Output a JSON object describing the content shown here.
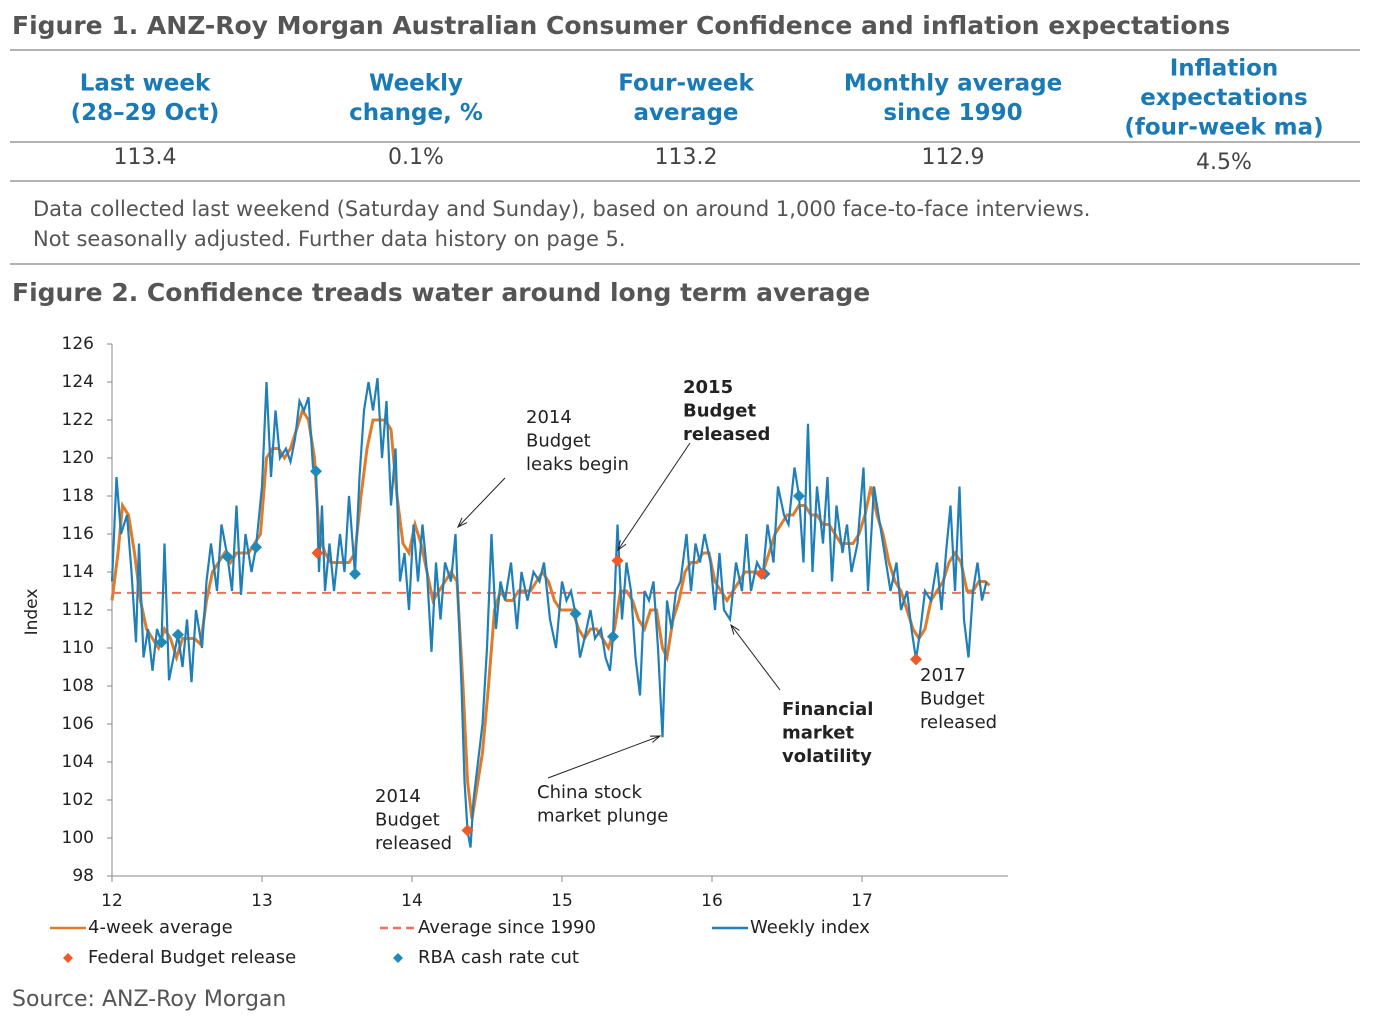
{
  "figure1": {
    "title": "Figure 1. ANZ-Roy Morgan Australian Consumer Confidence and inflation expectations",
    "headers": [
      [
        "Last week",
        "(28–29 Oct)"
      ],
      [
        "Weekly",
        "change, %"
      ],
      [
        "Four-week",
        "average"
      ],
      [
        "Monthly average",
        "since 1990"
      ],
      [
        "Inflation",
        "expectations",
        "(four-week ma)"
      ]
    ],
    "values": [
      "113.4",
      "0.1%",
      "113.2",
      "112.9",
      "4.5%"
    ],
    "note": [
      "Data collected last weekend (Saturday and Sunday), based on around 1,000 face-to-face interviews.",
      "Not seasonally adjusted. Further data history on page 5."
    ]
  },
  "chart_data": {
    "type": "line",
    "title": "Figure 2. Confidence treads water around long term average",
    "y_label": "Index",
    "xlim": [
      12,
      18
    ],
    "xticks": [
      12,
      13,
      14,
      15,
      16,
      17
    ],
    "ylim": [
      98,
      126
    ],
    "yticks": [
      98,
      100,
      102,
      104,
      106,
      108,
      110,
      112,
      114,
      116,
      118,
      120,
      122,
      124,
      126
    ],
    "series": [
      {
        "name": "4-week average",
        "color": "#e07b2a",
        "style": "line",
        "x": [
          12.0,
          12.04,
          12.07,
          12.11,
          12.15,
          12.19,
          12.23,
          12.27,
          12.31,
          12.35,
          12.39,
          12.43,
          12.47,
          12.51,
          12.55,
          12.59,
          12.63,
          12.67,
          12.71,
          12.75,
          12.79,
          12.83,
          12.87,
          12.91,
          12.95,
          12.99,
          13.03,
          13.07,
          13.11,
          13.15,
          13.19,
          13.23,
          13.27,
          13.31,
          13.35,
          13.38,
          13.42,
          13.46,
          13.5,
          13.54,
          13.58,
          13.62,
          13.66,
          13.7,
          13.74,
          13.78,
          13.82,
          13.86,
          13.9,
          13.94,
          13.98,
          14.02,
          14.06,
          14.1,
          14.14,
          14.18,
          14.22,
          14.26,
          14.3,
          14.34,
          14.37,
          14.4,
          14.43,
          14.47,
          14.51,
          14.55,
          14.59,
          14.63,
          14.67,
          14.71,
          14.75,
          14.79,
          14.83,
          14.87,
          14.91,
          14.95,
          14.99,
          15.03,
          15.07,
          15.11,
          15.15,
          15.19,
          15.23,
          15.27,
          15.31,
          15.35,
          15.39,
          15.43,
          15.47,
          15.51,
          15.55,
          15.59,
          15.63,
          15.67,
          15.7,
          15.74,
          15.78,
          15.82,
          15.86,
          15.9,
          15.94,
          15.98,
          16.02,
          16.06,
          16.1,
          16.14,
          16.18,
          16.22,
          16.26,
          16.3,
          16.34,
          16.38,
          16.42,
          16.46,
          16.5,
          16.54,
          16.58,
          16.62,
          16.66,
          16.7,
          16.74,
          16.78,
          16.82,
          16.86,
          16.9,
          16.94,
          16.98,
          17.02,
          17.06,
          17.1,
          17.14,
          17.18,
          17.22,
          17.26,
          17.3,
          17.34,
          17.38,
          17.42,
          17.46,
          17.5,
          17.54,
          17.58,
          17.62,
          17.66,
          17.7,
          17.74,
          17.78,
          17.82,
          17.85
        ],
        "values": [
          112.5,
          115,
          117.5,
          117,
          115,
          112.5,
          111,
          110.5,
          110,
          111,
          110.5,
          109.5,
          110.5,
          110.5,
          110.5,
          110.2,
          112.5,
          114,
          114.5,
          115,
          114.5,
          115,
          115,
          115,
          115.5,
          116,
          120,
          120.5,
          120.5,
          120,
          120.5,
          121.5,
          122.5,
          122,
          120,
          116,
          115,
          114.5,
          114.5,
          114.5,
          114.5,
          115,
          118,
          120.5,
          122,
          122,
          122,
          121.5,
          118,
          115.5,
          115,
          116.5,
          115.5,
          114,
          112.5,
          113,
          113.5,
          114,
          113.5,
          108,
          103,
          101,
          102.5,
          104.5,
          108,
          112,
          113,
          112.5,
          112.5,
          113,
          113,
          113,
          113.5,
          114,
          113.5,
          112.5,
          112,
          112,
          112,
          111,
          110.5,
          111,
          111,
          110.5,
          110,
          111,
          113,
          113,
          112.5,
          111.5,
          111,
          112,
          112,
          110,
          109.5,
          111.5,
          112.5,
          114,
          114.5,
          114.5,
          115,
          115,
          113.5,
          113,
          112.5,
          113,
          113.5,
          114,
          114,
          114,
          114,
          115,
          116,
          116.5,
          117,
          117,
          117.5,
          117.5,
          117,
          117,
          116.5,
          116.5,
          116,
          115.5,
          115.5,
          115.5,
          116,
          117,
          118.5,
          117,
          116,
          114.5,
          113.5,
          113,
          112,
          111,
          110.5,
          111,
          112.5,
          113,
          113.5,
          114.5,
          115,
          114.5,
          113,
          113,
          113.5,
          113.5,
          113.3
        ]
      },
      {
        "name": "Average since 1990",
        "color": "#f0705a",
        "style": "dashed",
        "x": [
          12,
          17.85
        ],
        "values": [
          112.9,
          112.9
        ]
      },
      {
        "name": "Weekly index",
        "color": "#1f7fb8",
        "style": "line",
        "x": [
          12.0,
          12.03,
          12.06,
          12.1,
          12.13,
          12.16,
          12.18,
          12.21,
          12.24,
          12.27,
          12.3,
          12.33,
          12.35,
          12.38,
          12.41,
          12.44,
          12.47,
          12.5,
          12.53,
          12.56,
          12.6,
          12.63,
          12.66,
          12.7,
          12.73,
          12.77,
          12.8,
          12.83,
          12.86,
          12.89,
          12.93,
          12.96,
          13.0,
          13.03,
          13.06,
          13.09,
          13.12,
          13.16,
          13.19,
          13.22,
          13.25,
          13.28,
          13.31,
          13.34,
          13.36,
          13.38,
          13.4,
          13.42,
          13.45,
          13.48,
          13.52,
          13.55,
          13.58,
          13.62,
          13.65,
          13.68,
          13.71,
          13.74,
          13.77,
          13.8,
          13.83,
          13.86,
          13.89,
          13.92,
          13.95,
          13.98,
          14.01,
          14.04,
          14.07,
          14.1,
          14.13,
          14.16,
          14.19,
          14.22,
          14.26,
          14.29,
          14.31,
          14.33,
          14.35,
          14.37,
          14.39,
          14.41,
          14.44,
          14.47,
          14.5,
          14.53,
          14.56,
          14.59,
          14.62,
          14.66,
          14.7,
          14.73,
          14.77,
          14.81,
          14.85,
          14.88,
          14.92,
          14.96,
          15.0,
          15.03,
          15.06,
          15.09,
          15.12,
          15.15,
          15.19,
          15.22,
          15.26,
          15.29,
          15.32,
          15.34,
          15.37,
          15.4,
          15.43,
          15.46,
          15.49,
          15.52,
          15.55,
          15.58,
          15.61,
          15.64,
          15.67,
          15.7,
          15.73,
          15.76,
          15.79,
          15.83,
          15.86,
          15.89,
          15.92,
          15.95,
          15.99,
          16.02,
          16.05,
          16.08,
          16.12,
          16.16,
          16.2,
          16.23,
          16.26,
          16.3,
          16.34,
          16.37,
          16.41,
          16.44,
          16.48,
          16.51,
          16.55,
          16.58,
          16.61,
          16.64,
          16.67,
          16.7,
          16.74,
          16.77,
          16.8,
          16.83,
          16.87,
          16.9,
          16.93,
          16.97,
          17.01,
          17.04,
          17.08,
          17.11,
          17.15,
          17.19,
          17.23,
          17.26,
          17.3,
          17.33,
          17.36,
          17.39,
          17.42,
          17.46,
          17.5,
          17.53,
          17.56,
          17.59,
          17.62,
          17.65,
          17.68,
          17.71,
          17.74,
          17.77,
          17.8,
          17.83
        ],
        "values": [
          113.5,
          119,
          116,
          117,
          114,
          110.3,
          115.5,
          109.5,
          111,
          108.8,
          111,
          110.3,
          115.5,
          108.3,
          109.5,
          110.7,
          109,
          111.5,
          108.2,
          112,
          110,
          113.5,
          115.5,
          113,
          116.5,
          114.8,
          113,
          117.5,
          112.8,
          116,
          114,
          115.3,
          118.5,
          124,
          119,
          122.5,
          120,
          120.5,
          119.8,
          121,
          123,
          122.5,
          123.2,
          119.5,
          119.3,
          114,
          117.5,
          113,
          115.5,
          113,
          116,
          114,
          118,
          113.9,
          119,
          122.5,
          124,
          122.5,
          124.2,
          120,
          123,
          117.5,
          120.5,
          113.5,
          115,
          112,
          116.5,
          113.5,
          116.5,
          114,
          109.8,
          114.5,
          111.5,
          114.5,
          113.5,
          116,
          112,
          108,
          103,
          100.4,
          99.5,
          102,
          104,
          106,
          110,
          116,
          111,
          113.5,
          112.5,
          114.5,
          111,
          114,
          112.5,
          114,
          113.5,
          114.5,
          111.5,
          110,
          113.5,
          112.5,
          113,
          111.8,
          109.5,
          110.5,
          112,
          110.5,
          111,
          109.5,
          108.8,
          110.6,
          116.5,
          111.5,
          114.5,
          113,
          109.5,
          107.5,
          113,
          112.5,
          113.5,
          110,
          105.3,
          112.5,
          111,
          113,
          113.5,
          116,
          113,
          115.5,
          114.5,
          116,
          114.5,
          112,
          115,
          112,
          111.5,
          114.5,
          113,
          116,
          113,
          114.5,
          113.9,
          116.5,
          114.5,
          118.5,
          117,
          116.5,
          119.5,
          118,
          114.5,
          121.8,
          114,
          118.5,
          115.5,
          119,
          113.5,
          117.5,
          115,
          116.5,
          114,
          115.5,
          119.5,
          113,
          118.5,
          117,
          115,
          113,
          114.5,
          112,
          113,
          111,
          109.4,
          111,
          113,
          112.5,
          114.5,
          112,
          115,
          117.5,
          113,
          118.5,
          111.5,
          109.5,
          113,
          114.5,
          112.5,
          113.5
        ]
      },
      {
        "name": "Federal Budget release",
        "color": "#f05a28",
        "style": "marker",
        "x": [
          13.37,
          14.37,
          15.37,
          16.33,
          17.36
        ],
        "values": [
          115.0,
          100.4,
          114.6,
          113.9,
          109.4
        ]
      },
      {
        "name": "RBA cash rate cut",
        "color": "#1f89b8",
        "style": "marker",
        "x": [
          12.33,
          12.44,
          12.77,
          12.96,
          13.36,
          13.62,
          15.09,
          15.34,
          16.35,
          16.58
        ],
        "values": [
          110.3,
          110.7,
          114.8,
          115.3,
          119.3,
          113.9,
          111.8,
          110.6,
          113.9,
          118.0
        ]
      }
    ],
    "annotations": [
      [
        "2014",
        "Budget",
        "leaks begin"
      ],
      [
        "2015",
        "Budget",
        "released"
      ],
      [
        "Financial",
        "market",
        "volatility"
      ],
      [
        "2017",
        "Budget",
        "released"
      ],
      [
        "China stock",
        "market plunge"
      ],
      [
        "2014",
        "Budget",
        "released"
      ]
    ]
  },
  "source": "Source: ANZ-Roy Morgan"
}
